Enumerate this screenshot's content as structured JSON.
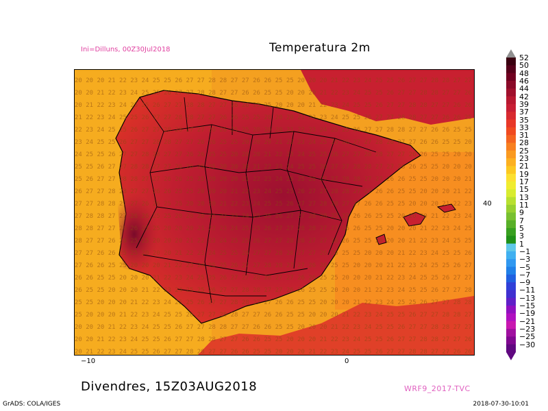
{
  "header": {
    "init_label": "Ini=Dilluns, 00Z30Jul2018",
    "title": "Temperatura 2m"
  },
  "footer": {
    "valid_time": "Divendres, 15Z03AUG2018",
    "model_tag": "WRF9_2017-TVC",
    "grads_credit": "GrADS: COLA/IGES",
    "timestamp": "2018-07-30-10:01"
  },
  "axes": {
    "x_ticks": [
      "−10",
      "0"
    ],
    "y_ticks": [
      "40"
    ]
  },
  "colorbar": {
    "labels": [
      "52",
      "50",
      "48",
      "46",
      "44",
      "42",
      "39",
      "37",
      "35",
      "33",
      "31",
      "28",
      "25",
      "23",
      "21",
      "19",
      "17",
      "15",
      "13",
      "11",
      "9",
      "7",
      "5",
      "3",
      "1",
      "−1",
      "−3",
      "−5",
      "−7",
      "−9",
      "−11",
      "−13",
      "−15",
      "−19",
      "−21",
      "−23",
      "−25",
      "−30"
    ],
    "colors": [
      "#3a0010",
      "#55001a",
      "#700020",
      "#8a0a28",
      "#a0102c",
      "#b81830",
      "#c81e34",
      "#d82a30",
      "#e83828",
      "#f04a20",
      "#f46420",
      "#f88020",
      "#fa9a20",
      "#fcb020",
      "#fcc820",
      "#fce030",
      "#f0ec30",
      "#d8ec30",
      "#b8e030",
      "#98d030",
      "#78c030",
      "#58b028",
      "#38a020",
      "#209018",
      "#60c8e8",
      "#40b0f0",
      "#3098f0",
      "#2080e8",
      "#2060e0",
      "#3040d8",
      "#4030d0",
      "#6020c8",
      "#9010c0",
      "#b010c0",
      "#c818b0",
      "#a010a0",
      "#800890",
      "#600880"
    ]
  },
  "map": {
    "sea_values_row": [
      "20",
      "20",
      "20",
      "21",
      "22",
      "23",
      "24",
      "25",
      "25",
      "26",
      "27",
      "27",
      "28",
      "28",
      "27",
      "27",
      "26",
      "26",
      "25",
      "25"
    ]
  }
}
